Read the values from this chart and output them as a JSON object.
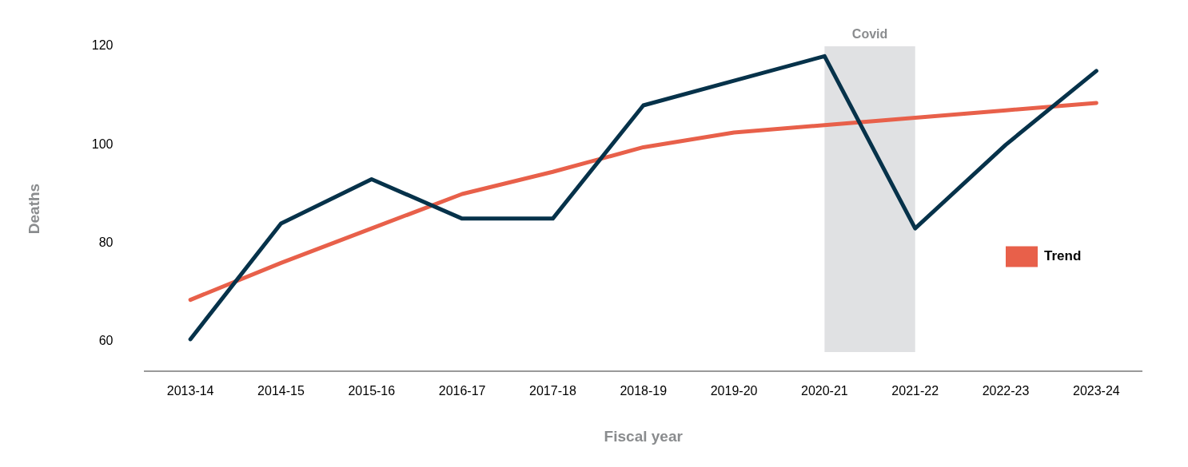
{
  "chart_data": {
    "type": "line",
    "xlabel": "Fiscal year",
    "ylabel": "Deaths",
    "categories": [
      "2013-14",
      "2014-15",
      "2015-16",
      "2016-17",
      "2017-18",
      "2018-19",
      "2019-20",
      "2020-21",
      "2021-22",
      "2022-23",
      "2023-24"
    ],
    "series": [
      {
        "color": "#06324a",
        "values": [
          60.5,
          84,
          93,
          85,
          85,
          108,
          113,
          118,
          83,
          100,
          115
        ]
      },
      {
        "name": "Trend",
        "color": "#e8604a",
        "values": [
          68.5,
          76,
          83,
          90,
          94.5,
          99.5,
          102.5,
          104,
          105.5,
          107,
          108.5
        ]
      }
    ],
    "ylim": [
      54,
      120
    ],
    "yticks": [
      60,
      80,
      100,
      120
    ],
    "grid": false,
    "legend": "right",
    "bands": [
      {
        "axis": "x",
        "from": "2020-21",
        "to": "2021-22",
        "label": "Covid",
        "color": "#e0e1e3"
      }
    ]
  }
}
